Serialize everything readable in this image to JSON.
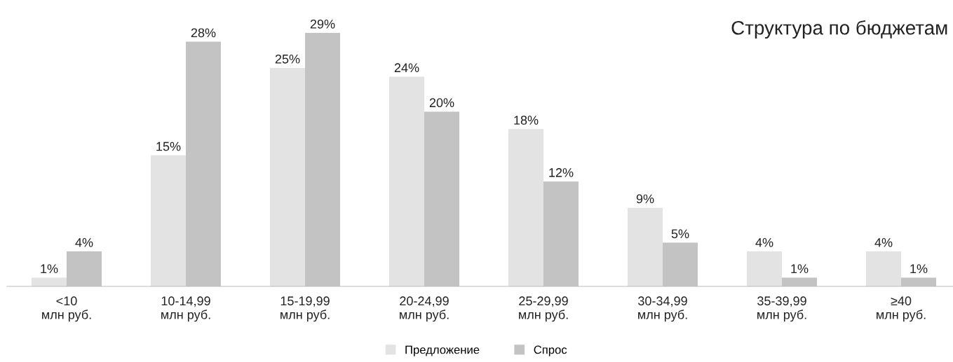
{
  "chart_data": {
    "type": "bar",
    "title": "Структура по бюджетам",
    "categories": [
      "<10\nмлн руб.",
      "10-14,99\nмлн руб.",
      "15-19,99\nмлн руб.",
      "20-24,99\nмлн руб.",
      "25-29,99\nмлн руб.",
      "30-34,99\nмлн руб.",
      "35-39,99\nмлн руб.",
      "≥40\nмлн руб."
    ],
    "series": [
      {
        "name": "Предложение",
        "color": "#e3e3e3",
        "values": [
          1,
          15,
          25,
          24,
          18,
          9,
          4,
          4
        ],
        "value_labels": [
          "1%",
          "15%",
          "25%",
          "24%",
          "18%",
          "9%",
          "4%",
          "4%"
        ]
      },
      {
        "name": "Спрос",
        "color": "#c3c3c3",
        "values": [
          4,
          28,
          29,
          20,
          12,
          5,
          1,
          1
        ],
        "value_labels": [
          "4%",
          "28%",
          "29%",
          "20%",
          "12%",
          "5%",
          "1%",
          "1%"
        ]
      }
    ],
    "legend": "bottom",
    "grid": false,
    "tick_labels": "x"
  }
}
